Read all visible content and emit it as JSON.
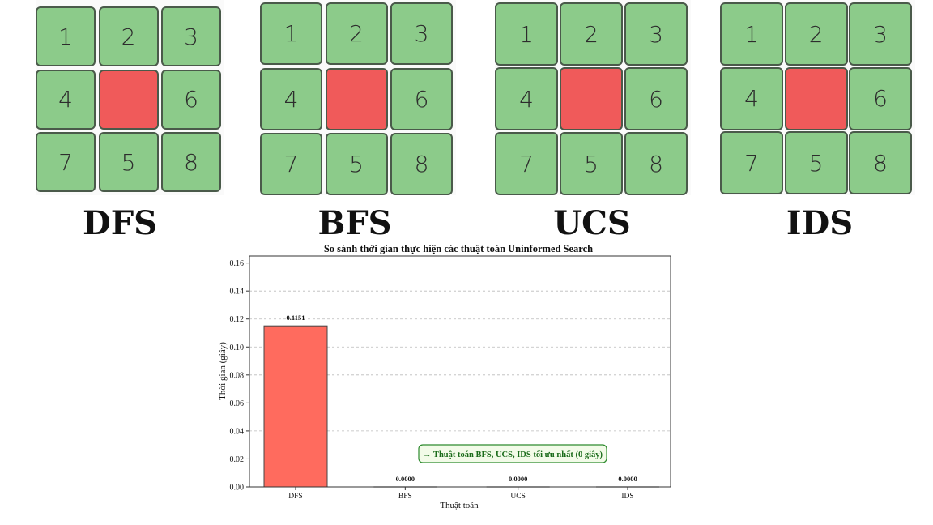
{
  "boards": [
    {
      "label": "DFS",
      "tiles": [
        "1",
        "2",
        "3",
        "4",
        "",
        "6",
        "7",
        "5",
        "8"
      ]
    },
    {
      "label": "BFS",
      "tiles": [
        "1",
        "2",
        "3",
        "4",
        "",
        "6",
        "7",
        "5",
        "8"
      ]
    },
    {
      "label": "UCS",
      "tiles": [
        "1",
        "2",
        "3",
        "4",
        "",
        "6",
        "7",
        "5",
        "8"
      ]
    },
    {
      "label": "IDS",
      "tiles": [
        "1",
        "2",
        "3",
        "4",
        "",
        "6",
        "7",
        "5",
        "8"
      ]
    }
  ],
  "colors": {
    "tile": "#8ccb8a",
    "blank": "#f05a5a",
    "dfs_bar": "#ff6b5e",
    "note_border": "#2e8b2e",
    "note_text": "#1a6b1a",
    "note_bg": "#f2fbe8"
  },
  "chart_data": {
    "type": "bar",
    "title": "So sánh thời gian thực hiện các thuật toán Uninformed Search",
    "xlabel": "Thuật toán",
    "ylabel": "Thời gian (giây)",
    "categories": [
      "DFS",
      "BFS",
      "UCS",
      "IDS"
    ],
    "values": [
      0.1151,
      0.0,
      0.0,
      0.0
    ],
    "value_labels": [
      "0.1151",
      "0.0000",
      "0.0000",
      "0.0000"
    ],
    "ylim": [
      0,
      0.165
    ],
    "yticks": [
      "0.00",
      "0.02",
      "0.04",
      "0.06",
      "0.08",
      "0.10",
      "0.12",
      "0.14",
      "0.16"
    ],
    "grid": "horizontal dashed",
    "annotation": "→ Thuật toán BFS, UCS, IDS tối ưu nhất (0 giây)"
  }
}
